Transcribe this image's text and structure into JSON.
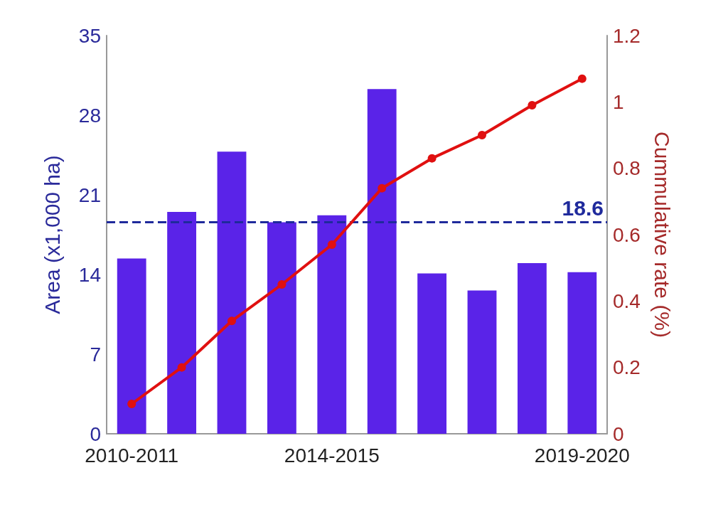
{
  "chart_data": {
    "type": "bar",
    "categories": [
      "2010-2011",
      null,
      null,
      null,
      "2014-2015",
      null,
      null,
      null,
      null,
      "2019-2020"
    ],
    "ylabel": "Area (x1,000 ha)",
    "y2label": "Cummulative rate (%)",
    "series": [
      {
        "color": "#5a23e8",
        "values": [
          15.4,
          19.5,
          24.8,
          18.6,
          19.2,
          30.3,
          14.1,
          12.6,
          15.0,
          14.2
        ]
      },
      {
        "type": "line",
        "axis": "y2",
        "color": "#e01010",
        "marker": "circle",
        "line_style": "solid",
        "values": [
          0.09,
          0.2,
          0.34,
          0.45,
          0.57,
          0.74,
          0.83,
          0.9,
          0.99,
          1.07
        ]
      }
    ],
    "ylim": [
      0,
      35
    ],
    "yticks": [
      0,
      7,
      14,
      21,
      28,
      35
    ],
    "y2lim": [
      0,
      1.2
    ],
    "y2ticks": [
      0,
      0.2,
      0.4,
      0.6,
      0.8,
      1,
      1.2
    ],
    "ref_lines": [
      {
        "axis": "y",
        "value": 18.6,
        "label": "18.6",
        "color": "#1f2a9c",
        "line_style": "dashed"
      }
    ],
    "grid": false
  }
}
